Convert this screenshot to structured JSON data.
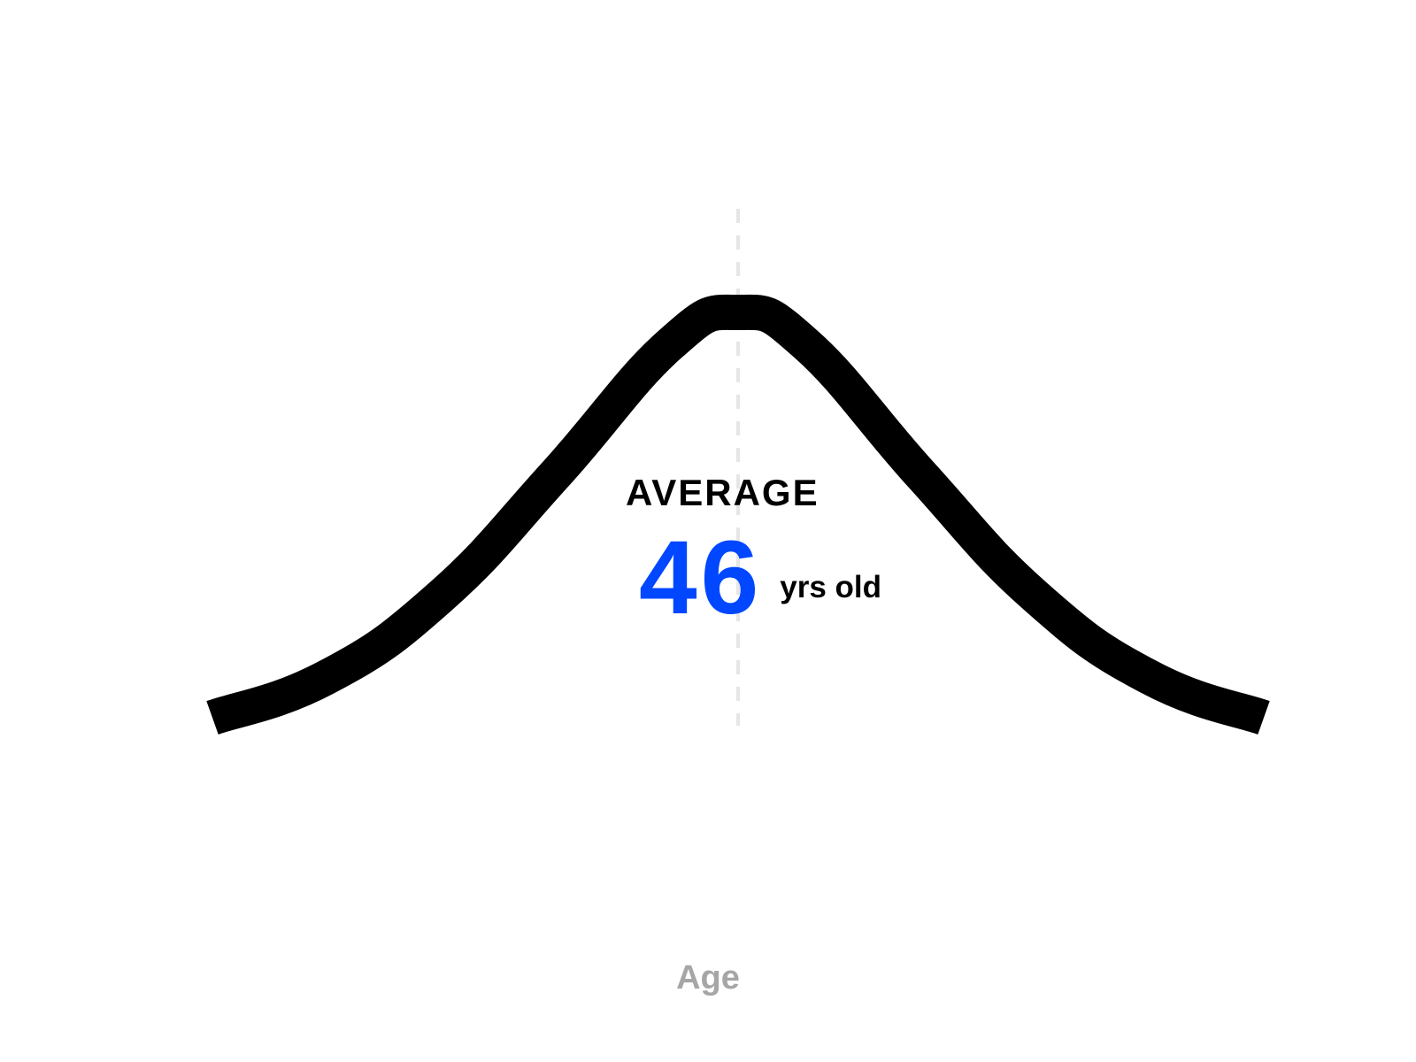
{
  "chart_data": {
    "type": "line",
    "title": "",
    "xlabel": "Age",
    "ylabel": "",
    "average": {
      "label": "AVERAGE",
      "value": "46",
      "unit": "yrs old"
    },
    "curve": {
      "x": [
        0,
        10,
        20,
        30,
        40,
        46,
        52,
        62,
        72,
        82,
        92
      ],
      "y": [
        0.0,
        0.1,
        0.3,
        0.6,
        0.92,
        1.0,
        0.92,
        0.6,
        0.3,
        0.1,
        0.0
      ]
    },
    "xlim": [
      0,
      92
    ],
    "ylim": [
      0,
      1
    ],
    "grid": false,
    "legend": "none"
  },
  "colors": {
    "curve": "#000000",
    "accent": "#0047ff",
    "guide": "#e6e6e6",
    "axis_label": "#a6a6a6"
  }
}
